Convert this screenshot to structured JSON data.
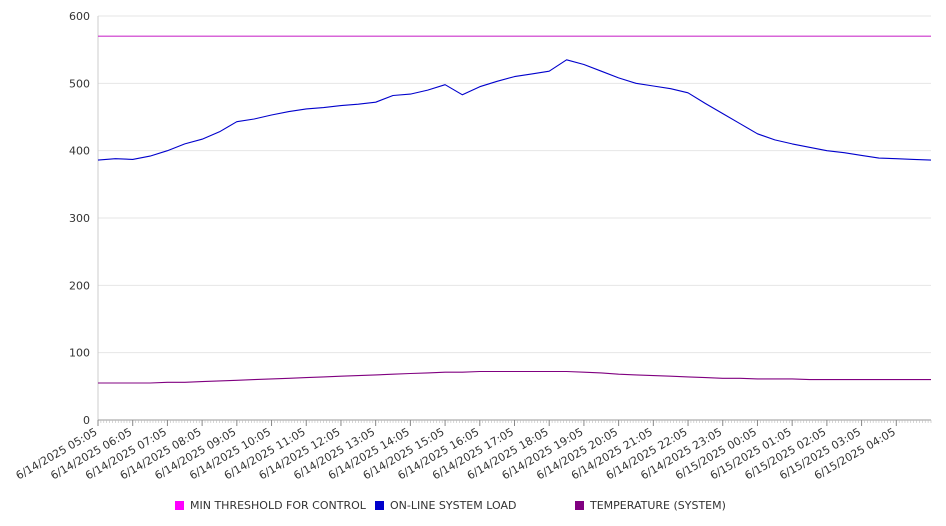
{
  "chart_data": {
    "type": "line",
    "title": "",
    "xlabel": "",
    "ylabel": "",
    "ylim": [
      0,
      600
    ],
    "yticks": [
      0,
      100,
      200,
      300,
      400,
      500,
      600
    ],
    "grid": true,
    "legend_position": "bottom",
    "x_tick_labels": [
      "6/14/2025 05:05",
      "6/14/2025 06:05",
      "6/14/2025 07:05",
      "6/14/2025 08:05",
      "6/14/2025 09:05",
      "6/14/2025 10:05",
      "6/14/2025 11:05",
      "6/14/2025 12:05",
      "6/14/2025 13:05",
      "6/14/2025 14:05",
      "6/14/2025 15:05",
      "6/14/2025 16:05",
      "6/14/2025 17:05",
      "6/14/2025 18:05",
      "6/14/2025 19:05",
      "6/14/2025 20:05",
      "6/14/2025 21:05",
      "6/14/2025 22:05",
      "6/14/2025 23:05",
      "6/15/2025 00:05",
      "6/15/2025 01:05",
      "6/15/2025 02:05",
      "6/15/2025 03:05",
      "6/15/2025 04:05"
    ],
    "x": [
      "6/14/2025 05:05",
      "6/14/2025 05:35",
      "6/14/2025 06:05",
      "6/14/2025 06:35",
      "6/14/2025 07:05",
      "6/14/2025 07:35",
      "6/14/2025 08:05",
      "6/14/2025 08:35",
      "6/14/2025 09:05",
      "6/14/2025 09:35",
      "6/14/2025 10:05",
      "6/14/2025 10:35",
      "6/14/2025 11:05",
      "6/14/2025 11:35",
      "6/14/2025 12:05",
      "6/14/2025 12:35",
      "6/14/2025 13:05",
      "6/14/2025 13:35",
      "6/14/2025 14:05",
      "6/14/2025 14:35",
      "6/14/2025 15:05",
      "6/14/2025 15:35",
      "6/14/2025 16:05",
      "6/14/2025 16:35",
      "6/14/2025 17:05",
      "6/14/2025 17:35",
      "6/14/2025 18:05",
      "6/14/2025 18:35",
      "6/14/2025 19:05",
      "6/14/2025 19:35",
      "6/14/2025 20:05",
      "6/14/2025 20:35",
      "6/14/2025 21:05",
      "6/14/2025 21:35",
      "6/14/2025 22:05",
      "6/14/2025 22:35",
      "6/14/2025 23:05",
      "6/14/2025 23:35",
      "6/15/2025 00:05",
      "6/15/2025 00:35",
      "6/15/2025 01:05",
      "6/15/2025 01:35",
      "6/15/2025 02:05",
      "6/15/2025 02:35",
      "6/15/2025 03:05",
      "6/15/2025 03:35",
      "6/15/2025 04:05",
      "6/15/2025 04:35",
      "6/15/2025 05:00"
    ],
    "series": [
      {
        "name": "MIN THRESHOLD FOR CONTROL",
        "color": "#cc33cc",
        "values": [
          570,
          570,
          570,
          570,
          570,
          570,
          570,
          570,
          570,
          570,
          570,
          570,
          570,
          570,
          570,
          570,
          570,
          570,
          570,
          570,
          570,
          570,
          570,
          570,
          570,
          570,
          570,
          570,
          570,
          570,
          570,
          570,
          570,
          570,
          570,
          570,
          570,
          570,
          570,
          570,
          570,
          570,
          570,
          570,
          570,
          570,
          570,
          570,
          570
        ]
      },
      {
        "name": "ON-LINE SYSTEM LOAD",
        "color": "#0000cc",
        "values": [
          386,
          388,
          387,
          392,
          400,
          410,
          417,
          428,
          443,
          447,
          453,
          458,
          462,
          464,
          467,
          469,
          472,
          482,
          484,
          490,
          498,
          483,
          495,
          503,
          510,
          514,
          518,
          535,
          528,
          518,
          508,
          500,
          496,
          492,
          486,
          470,
          455,
          440,
          425,
          416,
          410,
          405,
          400,
          397,
          393,
          389,
          388,
          387,
          386
        ]
      },
      {
        "name": "TEMPERATURE (SYSTEM)",
        "color": "#800080",
        "values": [
          55,
          55,
          55,
          55,
          56,
          56,
          57,
          58,
          59,
          60,
          61,
          62,
          63,
          64,
          65,
          66,
          67,
          68,
          69,
          70,
          71,
          71,
          72,
          72,
          72,
          72,
          72,
          72,
          71,
          70,
          68,
          67,
          66,
          65,
          64,
          63,
          62,
          62,
          61,
          61,
          61,
          60,
          60,
          60,
          60,
          60,
          60,
          60,
          60
        ]
      }
    ]
  }
}
